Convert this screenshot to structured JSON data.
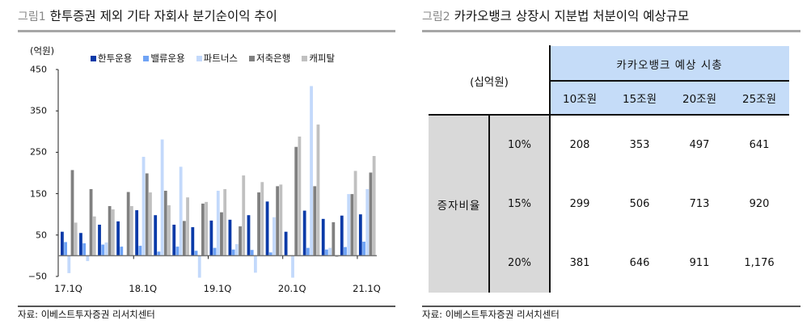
{
  "left": {
    "fig_num": "그림1",
    "title": "한투증권 제외 기타 자회사 분기순이익 추이",
    "unit": "(억원)",
    "source": "자료: 이베스트투자증권 리서치센터"
  },
  "right": {
    "fig_num": "그림2",
    "title": "카카오뱅크 상장시 지분법 처분이익 예상규모",
    "source": "자료: 이베스트투자증권 리서치센터",
    "table": {
      "unit": "(십억원)",
      "group_header": "카카오뱅크 예상 시총",
      "columns": [
        "10조원",
        "15조원",
        "20조원",
        "25조원"
      ],
      "row_group_label": "증자비율",
      "rows": [
        {
          "label": "10%",
          "values": [
            "208",
            "353",
            "497",
            "641"
          ]
        },
        {
          "label": "15%",
          "values": [
            "299",
            "506",
            "713",
            "920"
          ]
        },
        {
          "label": "20%",
          "values": [
            "381",
            "646",
            "911",
            "1,176"
          ]
        }
      ],
      "colors": {
        "header_bg": "#c5dcf8",
        "row_header_bg": "#d9d9d9"
      }
    }
  },
  "chart_data": {
    "type": "bar",
    "title": "한투증권 제외 기타 자회사 분기순이익 추이",
    "xlabel": "",
    "ylabel": "(억원)",
    "ylim": [
      -50,
      450
    ],
    "yticks": [
      450,
      350,
      250,
      150,
      50,
      -50
    ],
    "xtick_labels": [
      "17.1Q",
      "18.1Q",
      "19.1Q",
      "20.1Q",
      "21.1Q"
    ],
    "grid": false,
    "legend_position": "top",
    "categories": [
      "17.1Q",
      "17.2Q",
      "17.3Q",
      "17.4Q",
      "18.1Q",
      "18.2Q",
      "18.3Q",
      "18.4Q",
      "19.1Q",
      "19.2Q",
      "19.3Q",
      "19.4Q",
      "20.1Q",
      "20.2Q",
      "20.3Q",
      "20.4Q",
      "21.1Q"
    ],
    "series": [
      {
        "name": "한투운용",
        "color": "#0a3aa8",
        "values": [
          58,
          55,
          75,
          83,
          110,
          98,
          75,
          69,
          85,
          87,
          98,
          131,
          58,
          109,
          89,
          97,
          100
        ]
      },
      {
        "name": "밸류운용",
        "color": "#6fa3f5",
        "values": [
          33,
          30,
          27,
          22,
          24,
          10,
          22,
          12,
          19,
          15,
          14,
          8,
          0,
          19,
          15,
          21,
          34
        ]
      },
      {
        "name": "파트너스",
        "color": "#c3d9fb",
        "values": [
          -42,
          -13,
          32,
          0,
          239,
          281,
          215,
          -53,
          157,
          28,
          -41,
          93,
          -53,
          410,
          19,
          149,
          161
        ]
      },
      {
        "name": "저축은행",
        "color": "#808080",
        "values": [
          207,
          161,
          120,
          154,
          199,
          157,
          84,
          126,
          105,
          71,
          153,
          168,
          263,
          168,
          81,
          149,
          201
        ]
      },
      {
        "name": "캐피탈",
        "color": "#c0c0c0",
        "values": [
          80,
          95,
          112,
          120,
          153,
          122,
          141,
          130,
          161,
          194,
          178,
          172,
          288,
          317,
          -3,
          205,
          241
        ]
      }
    ]
  }
}
